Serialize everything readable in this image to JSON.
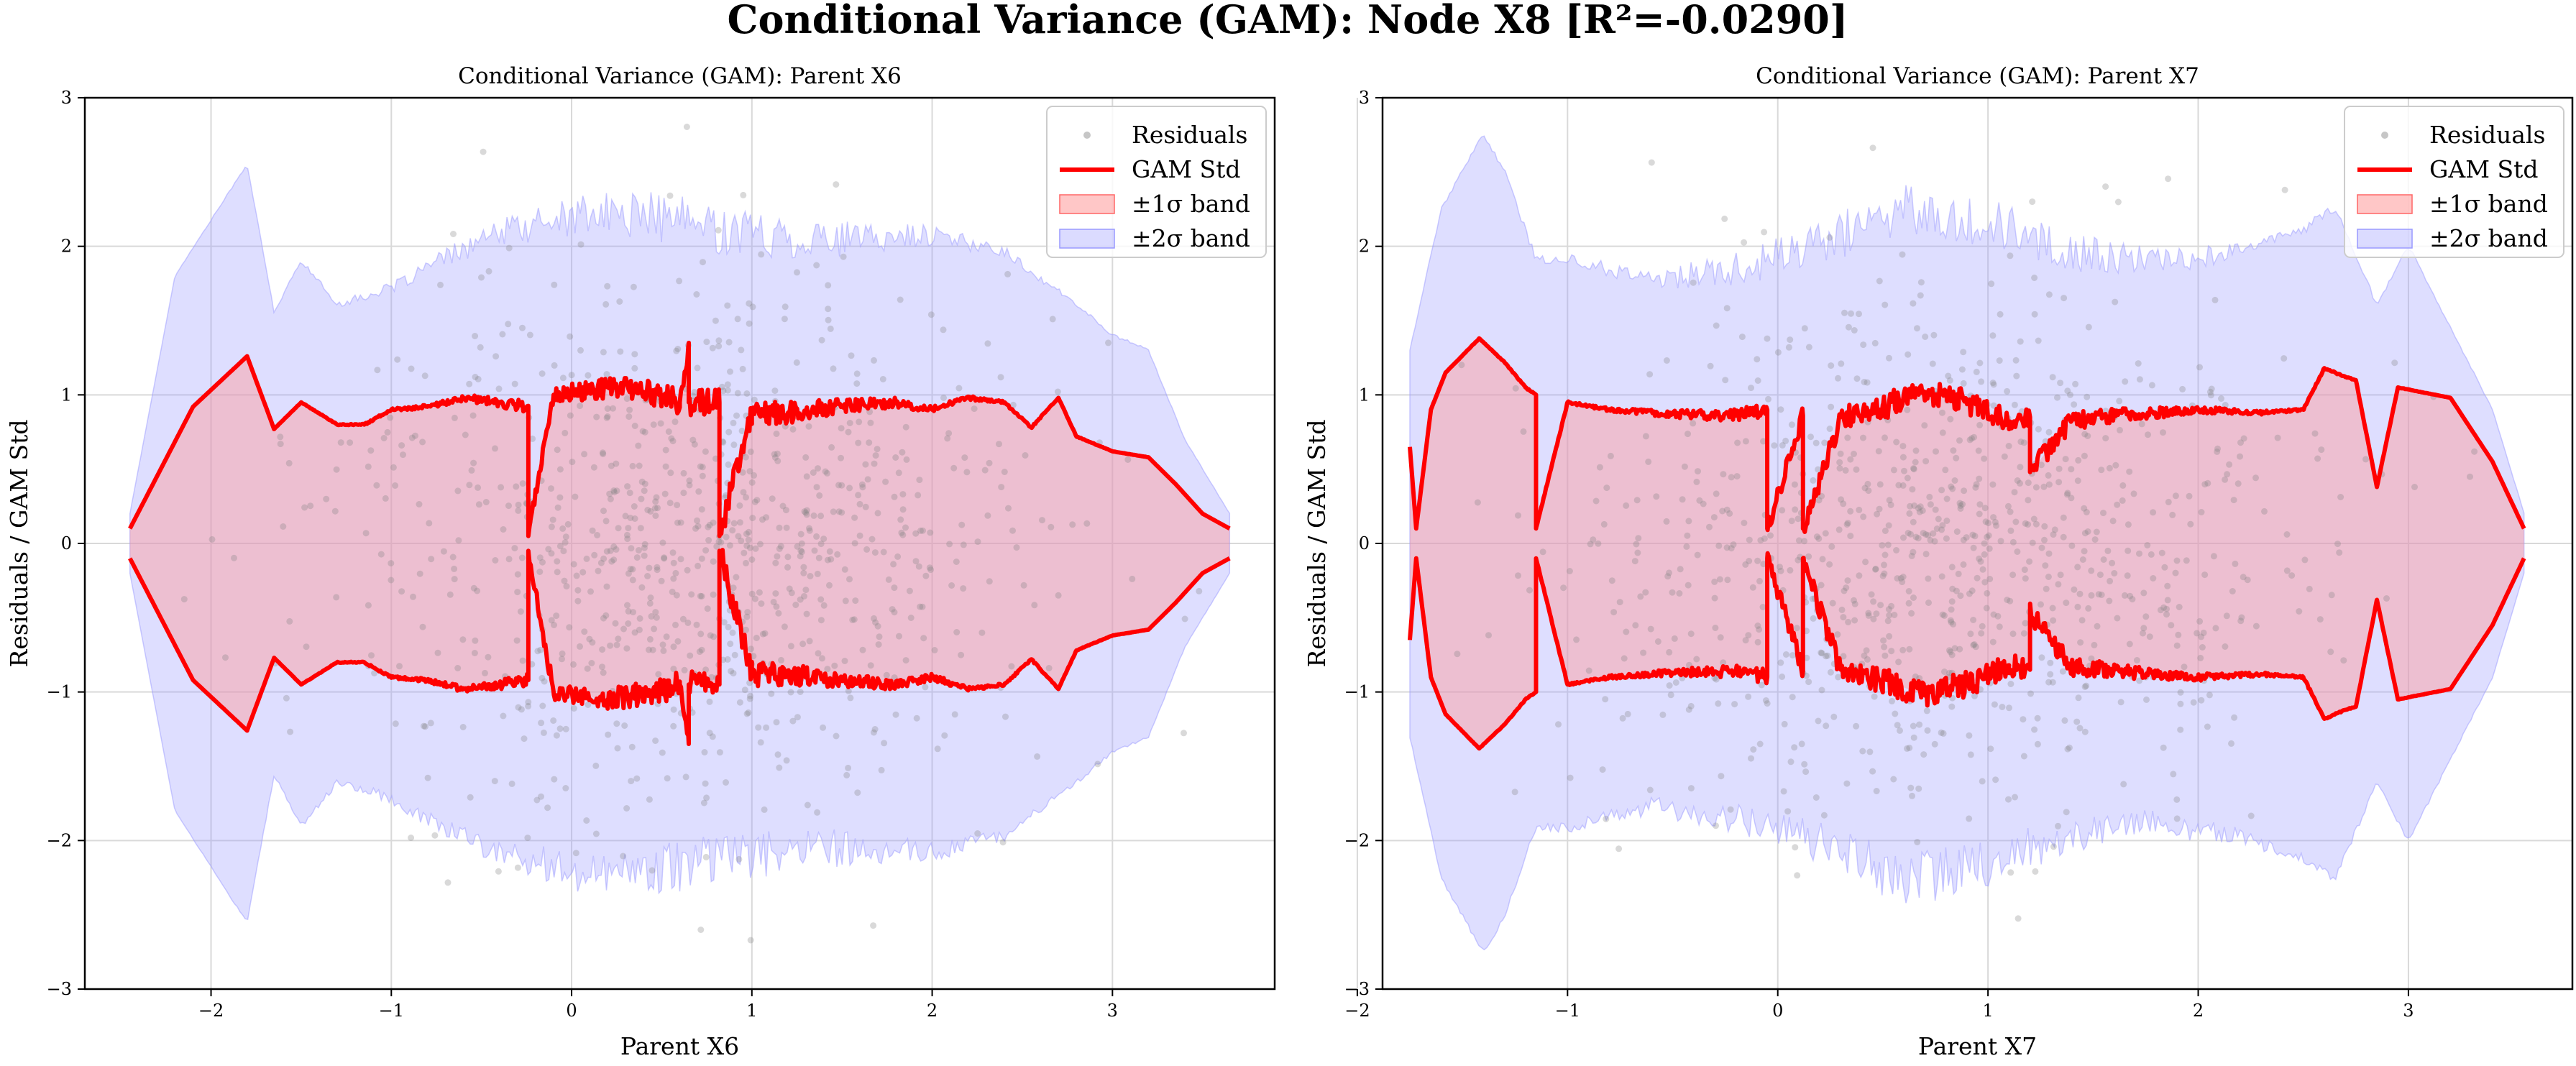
{
  "figure": {
    "title": "Conditional Variance (GAM): Node X8 [R²=-0.0290]"
  },
  "colors": {
    "residual_points": "#808080",
    "gam_std_line": "#ff0000",
    "band_1sigma": "#ff9999",
    "band_2sigma": "#9999ff",
    "grid": "#d9d9d9"
  },
  "legend": {
    "placement": "top-right",
    "items": [
      {
        "label": "Residuals",
        "kind": "points"
      },
      {
        "label": "GAM Std",
        "kind": "line"
      },
      {
        "label": "±1σ band",
        "kind": "band1"
      },
      {
        "label": "±2σ band",
        "kind": "band2"
      }
    ]
  },
  "chart_data": [
    {
      "type": "scatter",
      "title": "Conditional Variance (GAM): Parent X6",
      "xlabel": "Parent X6",
      "ylabel": "Residuals / GAM Std",
      "xlim": [
        -2.7,
        3.9
      ],
      "ylim": [
        -3.0,
        3.0
      ],
      "xticks": [
        "−2",
        "−1",
        "0",
        "1",
        "2",
        "3"
      ],
      "xtick_values": [
        -2,
        -1,
        0,
        1,
        2,
        3
      ],
      "yticks": [
        "−3",
        "−2",
        "−1",
        "0",
        "1",
        "2",
        "3"
      ],
      "ytick_values": [
        -3,
        -2,
        -1,
        0,
        1,
        2,
        3
      ],
      "grid": true,
      "x_range": [
        -2.45,
        3.65
      ],
      "series": [
        {
          "name": "GAM Std",
          "x": [
            -2.45,
            -2.1,
            -1.8,
            -1.65,
            -1.5,
            -1.3,
            -1.15,
            -1.0,
            -0.8,
            -0.6,
            -0.4,
            -0.24,
            -0.24,
            -0.1,
            0.2,
            0.4,
            0.6,
            0.65,
            0.65,
            0.82,
            0.82,
            1.0,
            1.2,
            1.5,
            1.8,
            2.0,
            2.2,
            2.4,
            2.55,
            2.7,
            2.8,
            3.0,
            3.2,
            3.35,
            3.5,
            3.65
          ],
          "values": [
            0.1,
            0.92,
            1.26,
            0.77,
            0.95,
            0.8,
            0.8,
            0.9,
            0.92,
            0.98,
            0.95,
            0.92,
            0.05,
            1.0,
            1.05,
            1.02,
            0.95,
            1.35,
            0.95,
            0.95,
            0.05,
            0.88,
            0.88,
            0.92,
            0.95,
            0.9,
            0.98,
            0.95,
            0.78,
            0.98,
            0.72,
            0.62,
            0.58,
            0.4,
            0.2,
            0.1
          ]
        },
        {
          "name": "±2σ band",
          "x": [
            -2.45,
            -2.2,
            -1.8,
            -1.65,
            -1.5,
            -1.3,
            -1.0,
            -0.7,
            -0.4,
            0.0,
            0.4,
            0.8,
            1.2,
            1.6,
            2.0,
            2.4,
            2.8,
            3.0,
            3.2,
            3.4,
            3.65
          ],
          "values": [
            0.2,
            1.8,
            2.55,
            1.55,
            1.9,
            1.6,
            1.7,
            1.9,
            2.05,
            2.15,
            2.15,
            2.05,
            2.0,
            2.0,
            2.05,
            1.95,
            1.6,
            1.4,
            1.3,
            0.7,
            0.2
          ]
        },
        {
          "name": "Residuals",
          "count": 900,
          "distribution": "normal",
          "center_x": 0.7,
          "spread_x": 0.9,
          "sigma": 0.85
        }
      ]
    },
    {
      "type": "scatter",
      "title": "Conditional Variance (GAM): Parent X7",
      "xlabel": "Parent X7",
      "ylabel": "Residuals / GAM Std",
      "xlim": [
        -1.88,
        3.78
      ],
      "ylim": [
        -3.0,
        3.0
      ],
      "xticks": [
        "−2",
        "−1",
        "0",
        "1",
        "2",
        "3"
      ],
      "xtick_values": [
        -2,
        -1,
        0,
        1,
        2,
        3
      ],
      "yticks": [
        "−3",
        "−2",
        "−1",
        "0",
        "1",
        "2",
        "3"
      ],
      "ytick_values": [
        -3,
        -2,
        -1,
        0,
        1,
        2,
        3
      ],
      "grid": true,
      "x_range": [
        -1.75,
        3.55
      ],
      "series": [
        {
          "name": "GAM Std",
          "x": [
            -1.75,
            -1.72,
            -1.65,
            -1.58,
            -1.42,
            -1.3,
            -1.2,
            -1.15,
            -1.15,
            -1.0,
            -0.8,
            -0.5,
            -0.2,
            -0.05,
            -0.05,
            0.12,
            0.12,
            0.3,
            0.5,
            0.7,
            0.9,
            1.1,
            1.2,
            1.2,
            1.4,
            1.7,
            2.0,
            2.3,
            2.5,
            2.6,
            2.7,
            2.75,
            2.85,
            2.95,
            3.2,
            3.4,
            3.55
          ],
          "values": [
            0.65,
            0.1,
            0.9,
            1.15,
            1.38,
            1.22,
            1.05,
            1.0,
            0.1,
            0.95,
            0.9,
            0.87,
            0.86,
            0.9,
            0.1,
            0.86,
            0.1,
            0.85,
            0.92,
            1.02,
            0.95,
            0.82,
            0.85,
            0.48,
            0.83,
            0.87,
            0.9,
            0.88,
            0.9,
            1.18,
            1.12,
            1.1,
            0.38,
            1.05,
            0.98,
            0.55,
            0.1
          ]
        },
        {
          "name": "±2σ band",
          "x": [
            -1.75,
            -1.6,
            -1.4,
            -1.3,
            -1.15,
            -1.0,
            -0.6,
            -0.2,
            0.2,
            0.6,
            1.0,
            1.4,
            1.8,
            2.2,
            2.5,
            2.65,
            2.85,
            3.0,
            3.2,
            3.4,
            3.55
          ],
          "values": [
            1.3,
            2.25,
            2.75,
            2.5,
            1.9,
            1.9,
            1.75,
            1.8,
            1.95,
            2.2,
            2.1,
            1.9,
            1.85,
            1.95,
            2.1,
            2.25,
            1.6,
            2.0,
            1.45,
            0.9,
            0.2
          ]
        },
        {
          "name": "Residuals",
          "count": 900,
          "distribution": "normal",
          "center_x": 0.75,
          "spread_x": 0.85,
          "sigma": 0.85
        }
      ]
    }
  ]
}
